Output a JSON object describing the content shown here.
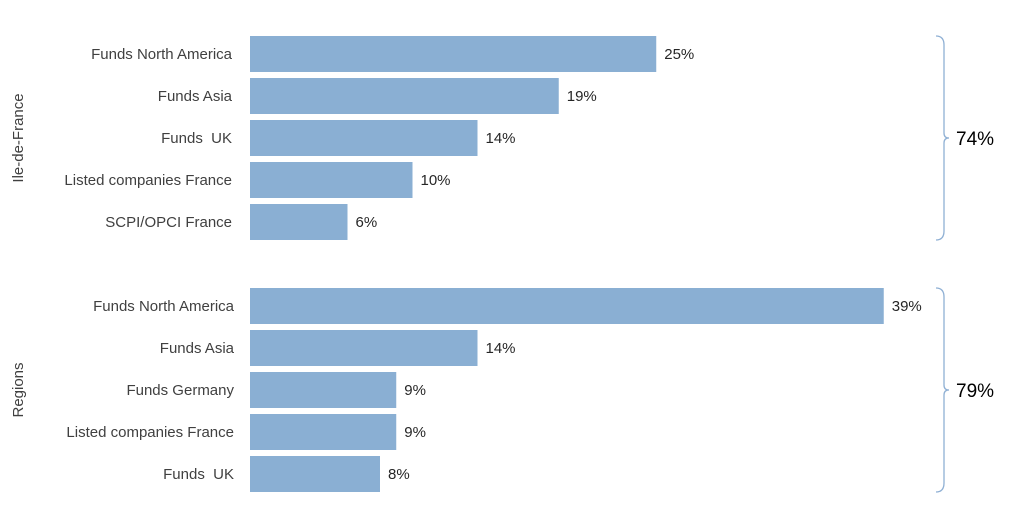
{
  "chart_data": {
    "type": "bar",
    "orientation": "horizontal",
    "bar_color": "#8aafd3",
    "value_format": "percent",
    "x_range": [
      0,
      40
    ],
    "grid": false,
    "legend": "none",
    "groups": [
      {
        "name": "Ile-de-France",
        "total": "74%",
        "categories": [
          "Funds North America",
          "Funds Asia",
          "Funds  UK",
          "Listed companies France",
          "SCPI/OPCI France"
        ],
        "values": [
          25,
          19,
          14,
          10,
          6
        ],
        "labels": [
          "25%",
          "19%",
          "14%",
          "10%",
          "6%"
        ]
      },
      {
        "name": "Regions",
        "total": "79%",
        "categories": [
          "Funds North America",
          "Funds Asia",
          "Funds Germany",
          "Listed companies France",
          "Funds  UK"
        ],
        "values": [
          39,
          14,
          9,
          9,
          8
        ],
        "labels": [
          "39%",
          "14%",
          "9%",
          "9%",
          "8%"
        ]
      }
    ]
  }
}
